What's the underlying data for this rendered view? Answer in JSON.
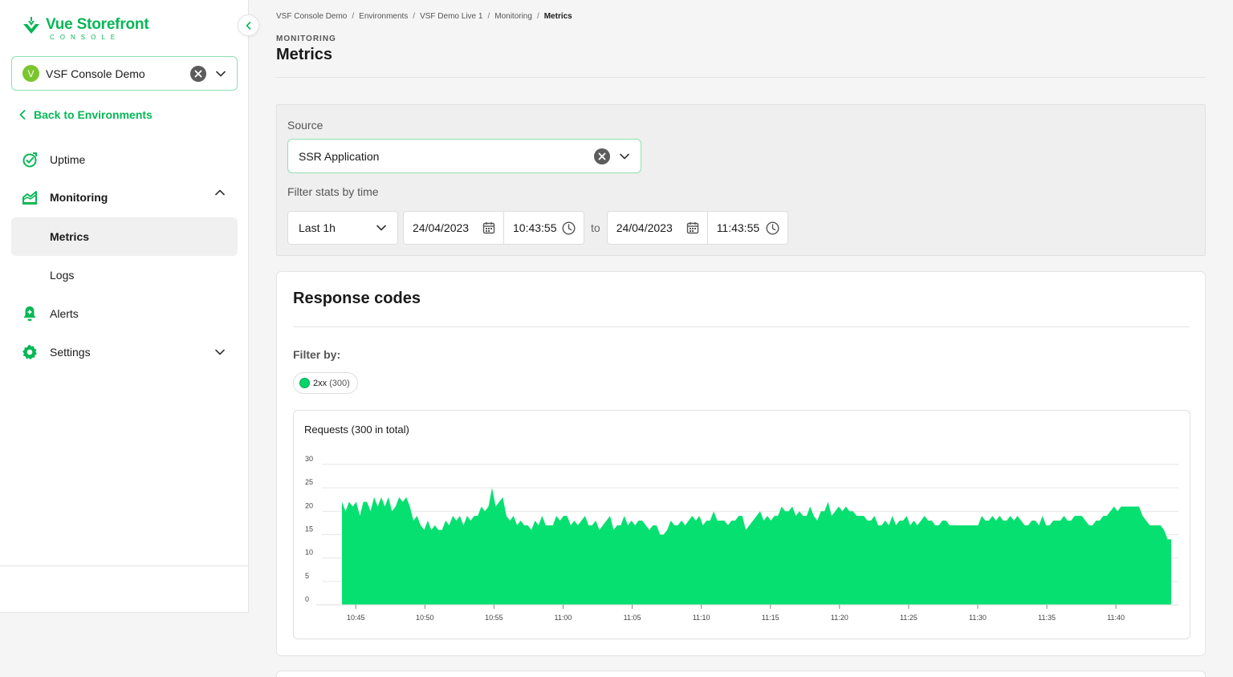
{
  "brand": {
    "name": "Vue Storefront",
    "sub": "CONSOLE",
    "accent": "#06b756"
  },
  "sidebar": {
    "project": {
      "avatar": "V",
      "name": "VSF Console Demo"
    },
    "back_label": "Back to Environments",
    "items": [
      {
        "label": "Uptime",
        "icon": "uptime-icon"
      },
      {
        "label": "Monitoring",
        "icon": "monitoring-icon",
        "expanded": true
      },
      {
        "label": "Metrics",
        "active": true
      },
      {
        "label": "Logs"
      },
      {
        "label": "Alerts",
        "icon": "bell-icon"
      },
      {
        "label": "Settings",
        "icon": "gear-icon",
        "expanded": false
      }
    ]
  },
  "breadcrumb": [
    "VSF Console Demo",
    "Environments",
    "VSF Demo Live 1",
    "Monitoring",
    "Metrics"
  ],
  "page": {
    "eyebrow": "MONITORING",
    "title": "Metrics"
  },
  "filters": {
    "source_label": "Source",
    "source_value": "SSR Application",
    "time_label": "Filter stats by time",
    "range_value": "Last 1h",
    "from_date": "24/04/2023",
    "from_time": "10:43:55",
    "to_label": "to",
    "to_date": "24/04/2023",
    "to_time": "11:43:55"
  },
  "card": {
    "title": "Response codes",
    "filter_by": "Filter by:",
    "chip_label": "2xx",
    "chip_count": "(300)",
    "chip_color": "#06d66a"
  },
  "chart_data": {
    "type": "area",
    "title": "Requests (300 in total)",
    "color": "#06e070",
    "ylim": [
      0,
      30
    ],
    "yticks": [
      "0",
      "5",
      "10",
      "15",
      "20",
      "25",
      "30"
    ],
    "xticks": [
      "10:45",
      "10:50",
      "10:55",
      "11:00",
      "11:05",
      "11:10",
      "11:15",
      "11:20",
      "11:25",
      "11:30",
      "11:35",
      "11:40"
    ],
    "x_start_minutes": 44,
    "x_end_minutes": 104,
    "values": [
      22,
      20,
      22,
      21,
      22,
      19,
      22,
      22,
      20,
      23,
      21,
      23,
      21,
      23,
      20,
      21,
      23,
      22,
      23,
      21,
      18,
      19,
      17,
      16,
      18,
      16,
      17,
      16,
      16,
      18,
      17,
      19,
      18,
      19,
      17,
      19,
      18,
      19,
      19,
      21,
      20,
      21,
      25,
      21,
      22,
      23,
      19,
      18,
      19,
      17,
      18,
      17,
      17,
      16,
      18,
      17,
      19,
      17,
      17,
      17,
      19,
      18,
      19,
      19,
      17,
      18,
      17,
      18,
      19,
      17,
      17,
      18,
      16,
      17,
      18,
      19,
      16,
      17,
      17,
      19,
      17,
      18,
      17,
      18,
      18,
      17,
      16,
      17,
      17,
      15,
      15,
      16,
      18,
      17,
      17,
      18,
      17,
      18,
      19,
      18,
      19,
      17,
      18,
      18,
      20,
      18,
      18,
      18,
      17,
      18,
      18,
      19,
      19,
      16,
      17,
      18,
      19,
      20,
      18,
      19,
      18,
      19,
      19,
      21,
      20,
      20,
      21,
      19,
      20,
      19,
      19,
      21,
      19,
      18,
      20,
      20,
      22,
      19,
      20,
      21,
      20,
      21,
      20,
      20,
      19,
      19,
      19,
      18,
      18,
      19,
      17,
      17,
      18,
      17,
      19,
      17,
      18,
      18,
      19,
      17,
      18,
      17,
      18,
      19,
      18,
      18,
      17,
      17,
      18,
      18,
      17,
      17,
      17,
      17,
      17,
      17,
      17,
      17,
      17,
      19,
      18,
      18,
      19,
      18,
      19,
      18,
      18,
      19,
      18,
      19,
      18,
      17,
      17,
      18,
      18,
      17,
      19,
      17,
      17,
      18,
      18,
      18,
      19,
      18,
      18,
      19,
      19,
      19,
      18,
      17,
      17,
      18,
      18,
      19,
      19,
      20,
      21,
      20,
      21,
      21,
      21,
      21,
      21,
      21,
      19,
      18,
      17,
      17,
      17,
      17,
      16,
      14,
      14
    ]
  }
}
